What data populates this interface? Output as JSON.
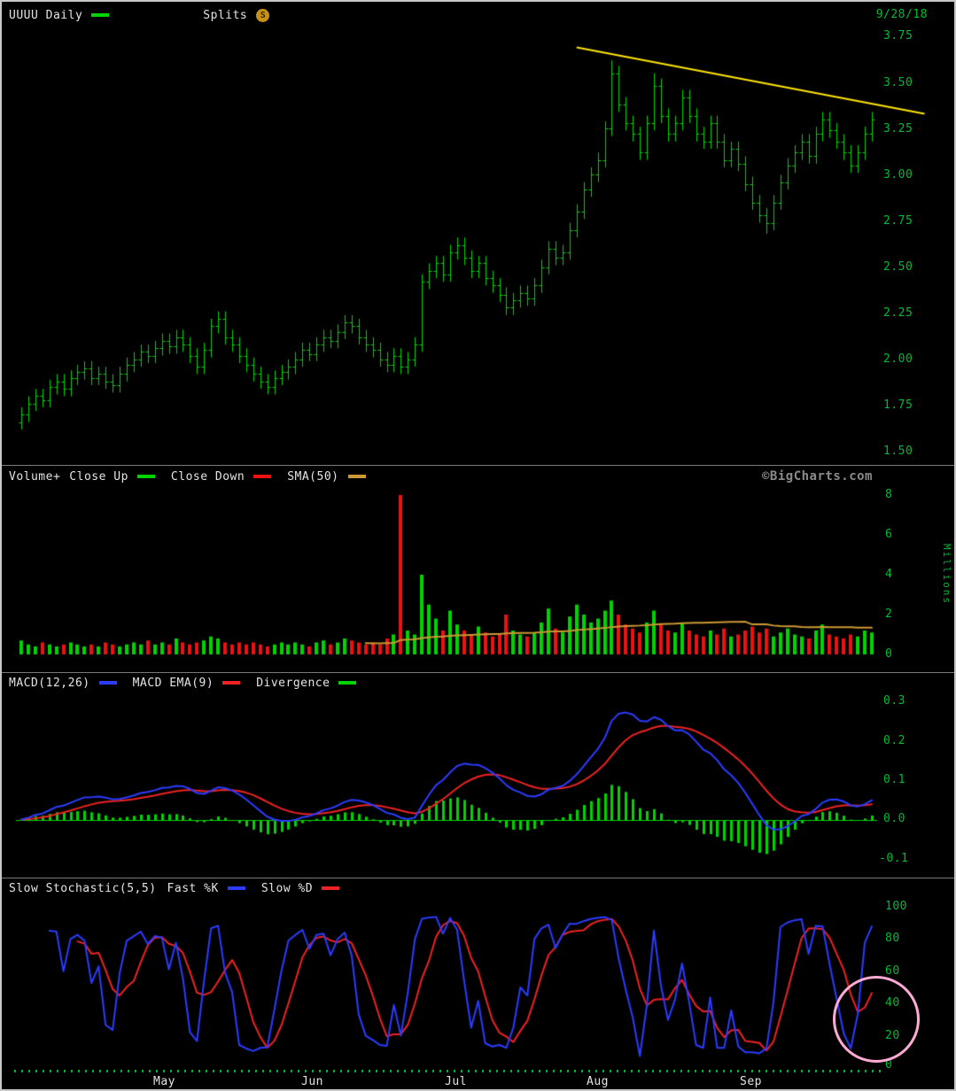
{
  "header": {
    "symbol_label": "UUUU Daily",
    "splits_label": "Splits",
    "splits_badge": "S",
    "date": "9/28/18"
  },
  "watermark": "©BigCharts.com",
  "legends": {
    "volume": {
      "title": "Volume+",
      "close_up": "Close Up",
      "close_down": "Close Down",
      "sma": "SMA(50)"
    },
    "macd": {
      "macd": "MACD(12,26)",
      "ema": "MACD EMA(9)",
      "divergence": "Divergence"
    },
    "stoch": {
      "title": "Slow Stochastic(5,5)",
      "fast_k": "Fast %K",
      "slow_d": "Slow %D"
    }
  },
  "axes": {
    "price_ticks": [
      "3.75",
      "3.50",
      "3.25",
      "3.00",
      "2.75",
      "2.50",
      "2.25",
      "2.00",
      "1.75",
      "1.50"
    ],
    "volume_ticks": [
      "8",
      "6",
      "4",
      "2",
      "0"
    ],
    "volume_unit": "Millions",
    "macd_ticks": [
      "0.3",
      "0.2",
      "0.1",
      "0.0",
      "-0.1"
    ],
    "stoch_ticks": [
      "100",
      "80",
      "60",
      "40",
      "20",
      "0"
    ],
    "months": [
      "May",
      "Jun",
      "Jul",
      "Aug",
      "Sep"
    ]
  },
  "colors": {
    "background": "#000000",
    "up_green": "#00d400",
    "down_red": "#ee1111",
    "axis_green": "#00bb33",
    "sma_tan": "#cc9933",
    "macd_blue": "#2b3cff",
    "signal_red": "#ee2222",
    "stoch_k_blue": "#2b3cff",
    "stoch_d_red": "#ee2222",
    "trendline_yellow": "#ffe400",
    "highlight_pink": "#ffaad4",
    "text": "#e4e4e4",
    "watermark_gray": "#8a8a8a",
    "splits_gold": "#c79212"
  },
  "chart_data": {
    "type": "ohlc-multi-panel",
    "symbol": "UUUU",
    "interval": "Daily",
    "last_date": "9/28/18",
    "x_months": [
      "May",
      "Jun",
      "Jul",
      "Aug",
      "Sep"
    ],
    "month_start_indices": [
      16,
      38,
      59,
      80,
      103
    ],
    "price": {
      "type": "ohlc",
      "ylim": [
        1.5,
        3.75
      ],
      "first_open": 1.66,
      "bar_spread": 0.04,
      "close": [
        1.7,
        1.76,
        1.8,
        1.78,
        1.85,
        1.88,
        1.84,
        1.9,
        1.93,
        1.95,
        1.9,
        1.92,
        1.88,
        1.86,
        1.92,
        1.97,
        2.0,
        2.04,
        2.02,
        2.06,
        2.1,
        2.07,
        2.12,
        2.08,
        2.02,
        1.96,
        2.05,
        2.18,
        2.22,
        2.12,
        2.08,
        2.02,
        1.97,
        1.92,
        1.88,
        1.85,
        1.9,
        1.93,
        1.96,
        2.0,
        2.05,
        2.03,
        2.08,
        2.12,
        2.1,
        2.15,
        2.2,
        2.18,
        2.12,
        2.08,
        2.05,
        2.0,
        1.97,
        2.02,
        1.96,
        2.0,
        2.08,
        2.42,
        2.48,
        2.52,
        2.46,
        2.58,
        2.62,
        2.55,
        2.48,
        2.52,
        2.44,
        2.4,
        2.35,
        2.28,
        2.32,
        2.36,
        2.33,
        2.4,
        2.5,
        2.6,
        2.55,
        2.58,
        2.7,
        2.8,
        2.92,
        3.0,
        3.08,
        3.25,
        3.55,
        3.38,
        3.28,
        3.22,
        3.12,
        3.28,
        3.48,
        3.32,
        3.22,
        3.28,
        3.42,
        3.32,
        3.22,
        3.18,
        3.28,
        3.18,
        3.08,
        3.14,
        3.06,
        2.95,
        2.85,
        2.78,
        2.74,
        2.85,
        2.96,
        3.05,
        3.12,
        3.18,
        3.1,
        3.22,
        3.3,
        3.24,
        3.18,
        3.12,
        3.05,
        3.12,
        3.22,
        3.3
      ],
      "high_overrides": [
        [
          84,
          3.62
        ],
        [
          90,
          3.55
        ]
      ],
      "low_overrides": [
        [
          106,
          2.68
        ]
      ],
      "trendline": {
        "start_index": 79,
        "start_price": 3.69,
        "end_index": 128.5,
        "end_price": 3.33,
        "color_key": "trendline_yellow"
      }
    },
    "volume": {
      "type": "bar",
      "ylim": [
        0,
        8
      ],
      "unit": "Millions",
      "sma_period": 50,
      "values": [
        0.7,
        0.5,
        0.4,
        0.6,
        0.5,
        0.4,
        0.5,
        0.6,
        0.5,
        0.4,
        0.5,
        0.4,
        0.6,
        0.5,
        0.4,
        0.5,
        0.6,
        0.5,
        0.7,
        0.5,
        0.6,
        0.5,
        0.8,
        0.6,
        0.5,
        0.6,
        0.7,
        0.9,
        0.8,
        0.6,
        0.5,
        0.6,
        0.5,
        0.6,
        0.5,
        0.4,
        0.5,
        0.6,
        0.5,
        0.6,
        0.5,
        0.4,
        0.6,
        0.7,
        0.5,
        0.6,
        0.8,
        0.7,
        0.6,
        0.5,
        0.6,
        0.5,
        0.8,
        1.0,
        8.0,
        1.2,
        1.0,
        4.0,
        2.5,
        1.8,
        1.2,
        2.2,
        1.5,
        1.2,
        1.0,
        1.4,
        1.1,
        0.9,
        1.0,
        2.0,
        1.2,
        1.0,
        0.9,
        1.1,
        1.6,
        2.3,
        1.3,
        1.1,
        1.9,
        2.5,
        2.0,
        1.6,
        1.8,
        2.2,
        2.7,
        2.0,
        1.5,
        1.3,
        1.1,
        1.6,
        2.2,
        1.5,
        1.2,
        1.1,
        1.6,
        1.2,
        1.0,
        0.9,
        1.2,
        1.0,
        1.3,
        0.9,
        1.0,
        1.2,
        1.4,
        1.1,
        1.3,
        0.9,
        1.1,
        1.3,
        1.0,
        0.9,
        0.8,
        1.2,
        1.5,
        1.0,
        0.9,
        0.8,
        1.0,
        0.9,
        1.2,
        1.1
      ]
    },
    "macd": {
      "type": "line-histogram",
      "params": [
        12,
        26,
        9
      ],
      "ylim": [
        -0.1,
        0.3
      ],
      "source": "price.close",
      "series_labels": [
        "MACD(12,26)",
        "MACD EMA(9)",
        "Divergence"
      ]
    },
    "stochastic": {
      "type": "line",
      "params": [
        5,
        5
      ],
      "ylim": [
        0,
        100
      ],
      "source": "price",
      "series_labels": [
        "Fast %K",
        "Slow %D"
      ],
      "annotation": "final upturn circled in pink"
    }
  }
}
